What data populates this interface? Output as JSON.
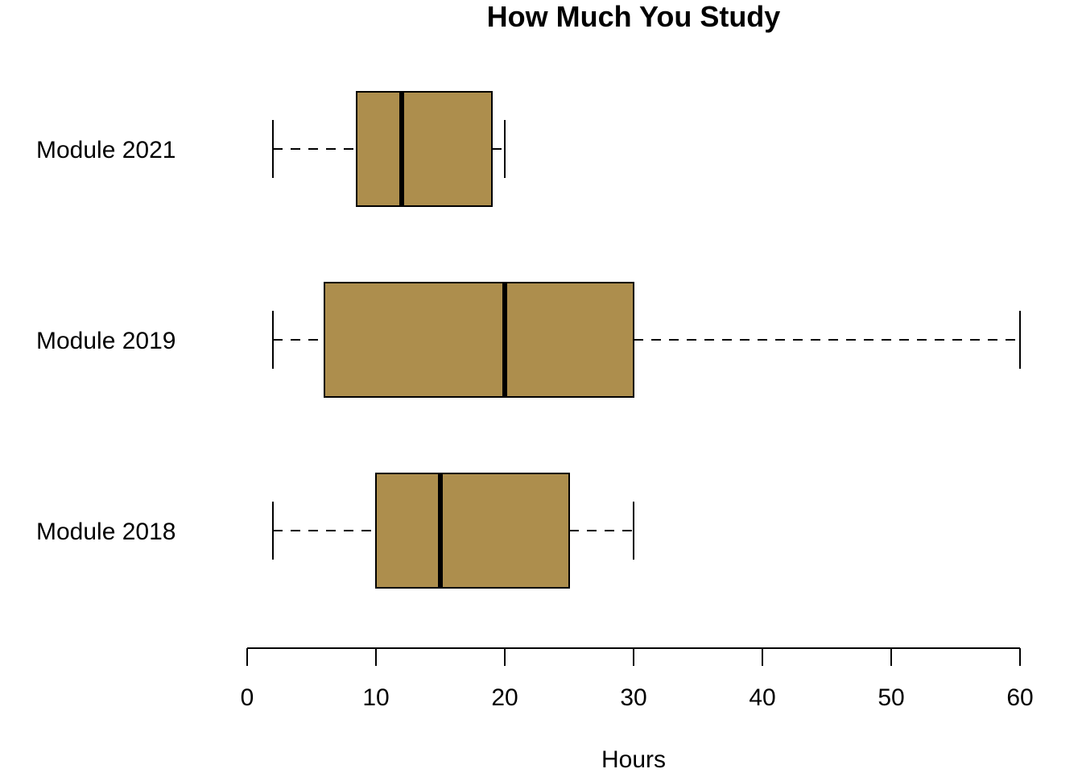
{
  "chart_data": {
    "type": "boxplot",
    "orientation": "horizontal",
    "title": "How Much You Study",
    "xlabel": "Hours",
    "ylabel": "",
    "xlim": [
      0,
      60
    ],
    "xticks": [
      0,
      10,
      20,
      30,
      40,
      50,
      60
    ],
    "grid": false,
    "legend": "none",
    "box_color": "#AD8E4D",
    "line_color": "#000000",
    "categories": [
      "Module 2021",
      "Module 2019",
      "Module 2018"
    ],
    "series": [
      {
        "category": "Module 2021",
        "whisker_low": 2,
        "q1": 8.5,
        "median": 12,
        "q3": 19,
        "whisker_high": 20
      },
      {
        "category": "Module 2019",
        "whisker_low": 2,
        "q1": 6,
        "median": 20,
        "q3": 30,
        "whisker_high": 60
      },
      {
        "category": "Module 2018",
        "whisker_low": 2,
        "q1": 10,
        "median": 15,
        "q3": 25,
        "whisker_high": 30
      }
    ]
  }
}
